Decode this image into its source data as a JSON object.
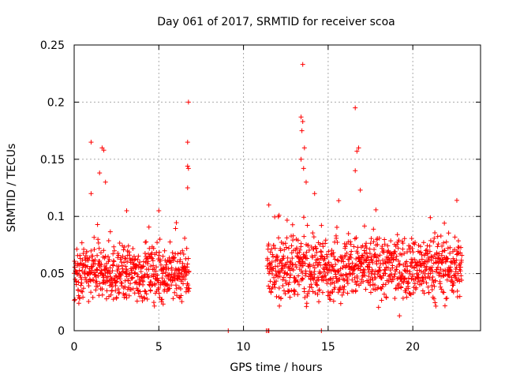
{
  "chart_data": {
    "type": "scatter",
    "title": "Day 061 of 2017, SRMTID for receiver scoa",
    "xlabel": "GPS time / hours",
    "ylabel": "SRMTID / TECUs",
    "xlim": [
      0,
      24
    ],
    "ylim": [
      0,
      0.25
    ],
    "x_ticks": [
      0,
      5,
      10,
      15,
      20
    ],
    "x_tick_labels": [
      "0",
      "5",
      "10",
      "15",
      "20"
    ],
    "y_ticks": [
      0,
      0.05,
      0.1,
      0.15,
      0.2,
      0.25
    ],
    "y_tick_labels": [
      "0",
      "0.05",
      "0.1",
      "0.15",
      "0.2",
      "0.25"
    ],
    "grid": true,
    "marker": "+",
    "color": "#ff0000",
    "series": [
      {
        "name": "SRMTID",
        "segments": [
          {
            "x_start": 0.0,
            "x_end": 6.8,
            "baseline": 0.05,
            "spread": 0.02,
            "step": 0.012
          },
          {
            "x_start": 11.4,
            "x_end": 22.9,
            "baseline": 0.055,
            "spread": 0.022,
            "step": 0.012
          }
        ],
        "outliers": [
          {
            "x": 1.0,
            "y": 0.165
          },
          {
            "x": 1.65,
            "y": 0.16
          },
          {
            "x": 1.75,
            "y": 0.158
          },
          {
            "x": 1.5,
            "y": 0.138
          },
          {
            "x": 1.85,
            "y": 0.13
          },
          {
            "x": 1.0,
            "y": 0.12
          },
          {
            "x": 6.75,
            "y": 0.2
          },
          {
            "x": 6.7,
            "y": 0.165
          },
          {
            "x": 6.7,
            "y": 0.144
          },
          {
            "x": 6.75,
            "y": 0.142
          },
          {
            "x": 6.7,
            "y": 0.125
          },
          {
            "x": 3.1,
            "y": 0.105
          },
          {
            "x": 5.0,
            "y": 0.105
          },
          {
            "x": 13.5,
            "y": 0.233
          },
          {
            "x": 13.4,
            "y": 0.187
          },
          {
            "x": 13.5,
            "y": 0.183
          },
          {
            "x": 13.45,
            "y": 0.175
          },
          {
            "x": 13.6,
            "y": 0.16
          },
          {
            "x": 13.4,
            "y": 0.15
          },
          {
            "x": 13.55,
            "y": 0.142
          },
          {
            "x": 13.7,
            "y": 0.13
          },
          {
            "x": 16.6,
            "y": 0.195
          },
          {
            "x": 16.8,
            "y": 0.16
          },
          {
            "x": 16.7,
            "y": 0.157
          },
          {
            "x": 16.6,
            "y": 0.14
          },
          {
            "x": 16.9,
            "y": 0.123
          },
          {
            "x": 22.6,
            "y": 0.114
          },
          {
            "x": 12.1,
            "y": 0.101
          },
          {
            "x": 14.2,
            "y": 0.12
          }
        ],
        "zero_points": [
          {
            "x": 9.1,
            "y": 0
          },
          {
            "x": 11.35,
            "y": 0
          },
          {
            "x": 11.45,
            "y": 0
          },
          {
            "x": 11.5,
            "y": 0
          },
          {
            "x": 14.6,
            "y": 0
          }
        ]
      }
    ]
  }
}
